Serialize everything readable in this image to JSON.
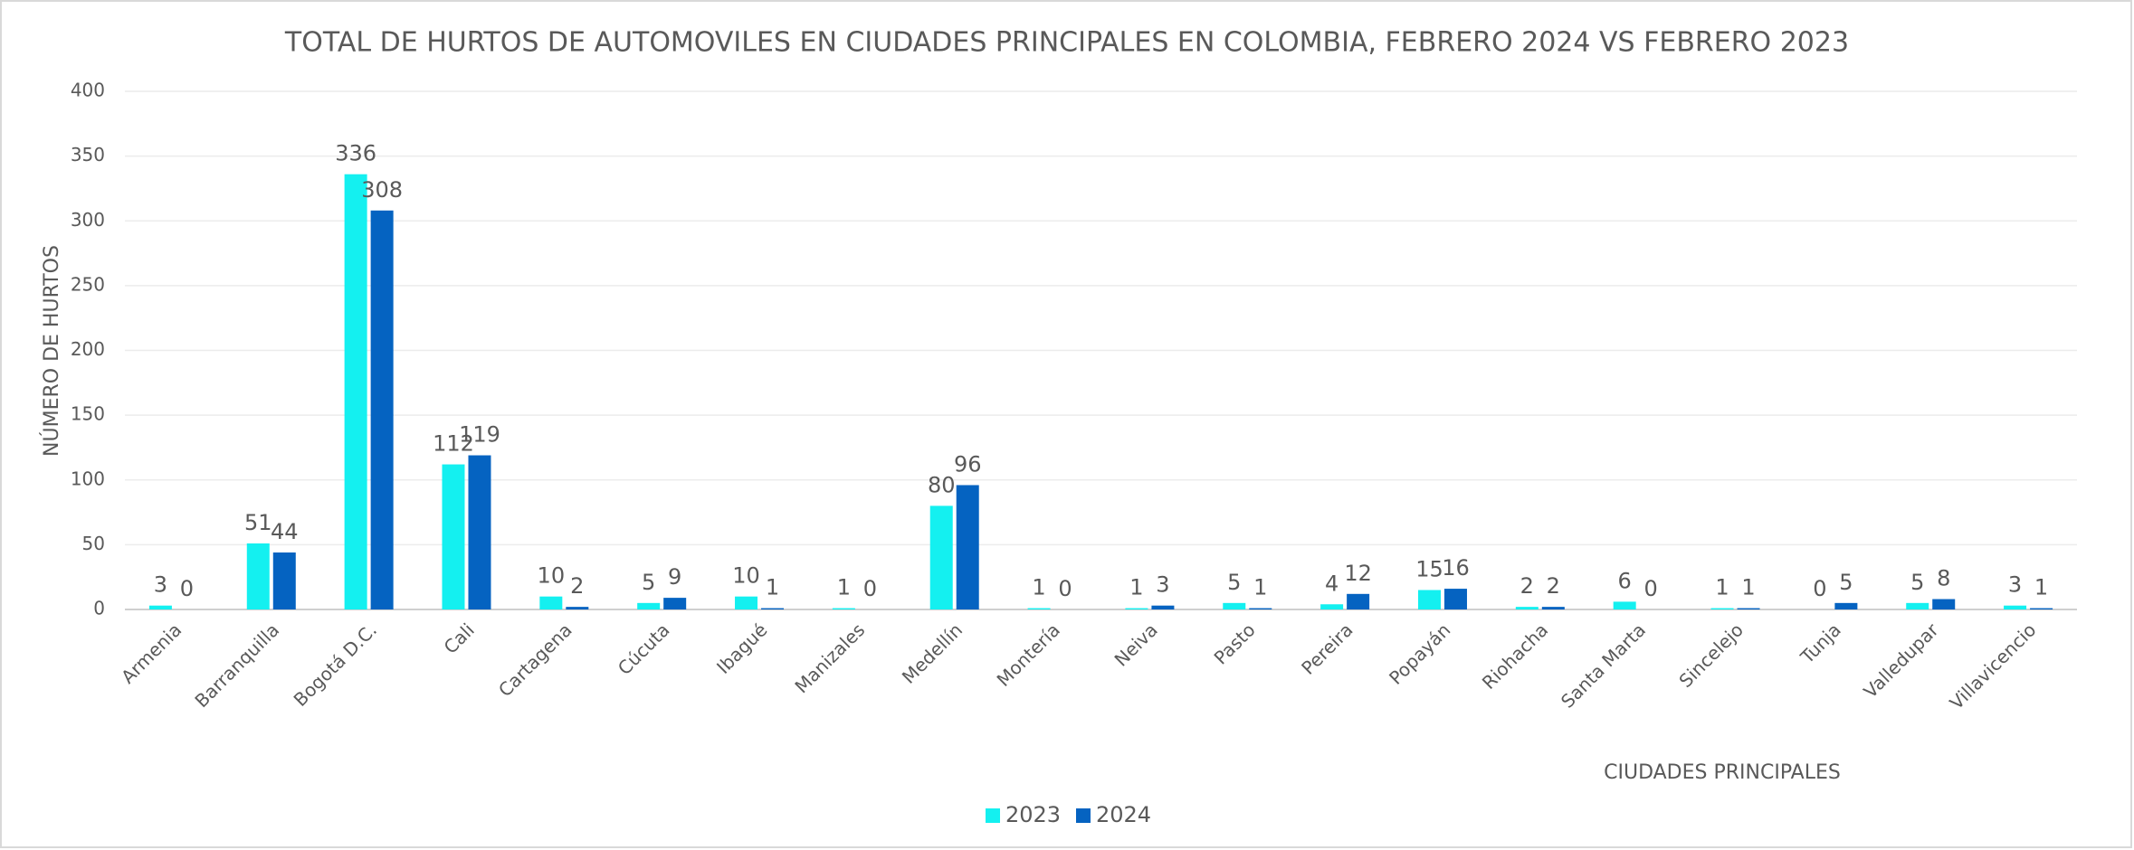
{
  "chart_data": {
    "type": "bar",
    "title": "TOTAL DE HURTOS DE AUTOMOVILES EN CIUDADES PRINCIPALES EN COLOMBIA, FEBRERO 2024 VS FEBRERO 2023",
    "x_label": "CIUDADES PRINCIPALES",
    "y_label": "NÚMERO DE HURTOS",
    "categories": [
      "Armenia",
      "Barranquilla",
      "Bogotá D.C.",
      "Cali",
      "Cartagena",
      "Cúcuta",
      "Ibagué",
      "Manizales",
      "Medellín",
      "Montería",
      "Neiva",
      "Pasto",
      "Pereira",
      "Popayán",
      "Riohacha",
      "Santa Marta",
      "Sincelejo",
      "Tunja",
      "Valledupar",
      "Villavicencio"
    ],
    "series": [
      {
        "name": "2023",
        "color": "#14f0f0",
        "values": [
          3,
          51,
          336,
          112,
          10,
          5,
          10,
          1,
          80,
          1,
          1,
          5,
          4,
          15,
          2,
          6,
          1,
          0,
          5,
          3
        ]
      },
      {
        "name": "2024",
        "color": "#0563c1",
        "values": [
          0,
          44,
          308,
          119,
          2,
          9,
          1,
          0,
          96,
          0,
          3,
          1,
          12,
          16,
          2,
          0,
          1,
          5,
          8,
          1
        ]
      }
    ],
    "ylim": [
      0,
      400
    ],
    "yticks": [
      0,
      50,
      100,
      150,
      200,
      250,
      300,
      350,
      400
    ],
    "grid": true,
    "legend": "bottom"
  }
}
